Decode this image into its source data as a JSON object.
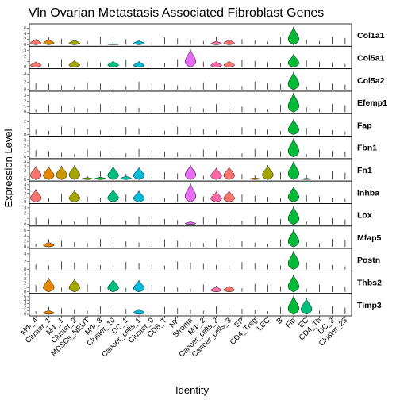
{
  "chart_data": {
    "type": "violin",
    "title": "Vln Ovarian Metastasis Associated Fibroblast Genes",
    "xlabel": "Identity",
    "ylabel": "Expression Level",
    "categories": [
      "MΦ_4",
      "Cluster_1",
      "MΦ_1",
      "Cluster_2",
      "MDSCs_NEUT",
      "MΦ_3",
      "Cluster_10",
      "DC_1",
      "Cancer_cells_1",
      "Cluster_0",
      "CD8_T",
      "NK",
      "Stroma",
      "MΦ_2",
      "Cancer_cells_2",
      "Cancer_cells_3",
      "EP",
      "CD4_Treg",
      "LEC",
      "B",
      "Fib",
      "EC",
      "CD4_Th",
      "DC_2",
      "Cluster_23"
    ],
    "colors": [
      "#F8766D",
      "#E58700",
      "#C99800",
      "#A3A500",
      "#6BB100",
      "#00BA38",
      "#00BF7D",
      "#00C0AF",
      "#00BCD8",
      "#00B0F6",
      "#619CFF",
      "#B983FF",
      "#E76BF3",
      "#FD61D1",
      "#FF67A4"
    ],
    "panels": [
      {
        "gene": "Col1a1",
        "ticks": [
          "6",
          "4",
          "2",
          "0"
        ],
        "ymax": 7,
        "values": [
          2.0,
          1.9,
          0,
          1.7,
          0,
          0,
          0.3,
          0,
          1.5,
          0,
          0,
          0,
          0.2,
          0,
          1.3,
          1.8,
          0,
          0,
          0,
          0,
          6.5,
          0,
          0,
          0,
          0
        ]
      },
      {
        "gene": "Col5a1",
        "ticks": [
          "3",
          "2",
          "1",
          "0"
        ],
        "ymax": 3.5,
        "values": [
          1.0,
          0,
          0,
          1.2,
          0,
          0,
          1.1,
          0,
          1.0,
          0,
          0,
          0,
          3.2,
          0,
          1.0,
          1.1,
          0,
          0,
          0,
          0,
          2.4,
          0,
          0,
          0,
          0
        ]
      },
      {
        "gene": "Col5a2",
        "ticks": [
          "4",
          "2",
          "0"
        ],
        "ymax": 5,
        "values": [
          0,
          0,
          0,
          0,
          0,
          0,
          0,
          0,
          0,
          0,
          0,
          0,
          0,
          0,
          0,
          0,
          0,
          0,
          0,
          0,
          4.6,
          0,
          0,
          0,
          0
        ]
      },
      {
        "gene": "Efemp1",
        "ticks": [
          "3",
          "2",
          "1",
          "0"
        ],
        "ymax": 3.5,
        "values": [
          0,
          0,
          0,
          0,
          0,
          0,
          0,
          0,
          0,
          0,
          0,
          0,
          0,
          0,
          0,
          0,
          0,
          0,
          0,
          0,
          3.5,
          0,
          0,
          0,
          0
        ]
      },
      {
        "gene": "Fap",
        "ticks": [
          "2",
          "1",
          "0"
        ],
        "ymax": 3,
        "values": [
          0,
          0,
          0,
          0,
          0,
          0,
          0,
          0,
          0,
          0,
          0,
          0,
          0,
          0,
          0,
          0,
          0,
          0,
          0,
          0,
          2.4,
          0,
          0,
          0,
          0
        ]
      },
      {
        "gene": "Fbn1",
        "ticks": [
          "3",
          "2",
          "1",
          "0"
        ],
        "ymax": 3.5,
        "values": [
          0,
          0,
          0,
          0,
          0,
          0,
          0,
          0,
          0,
          0,
          0,
          0,
          0,
          0,
          0,
          0,
          0,
          0,
          0,
          0,
          3.4,
          0,
          0,
          0,
          0
        ]
      },
      {
        "gene": "Fn1",
        "ticks": [
          "4",
          "3",
          "2",
          "1",
          "0"
        ],
        "ymax": 4.5,
        "values": [
          3.1,
          3.0,
          3.2,
          3.3,
          0.5,
          0.6,
          3.0,
          0.8,
          2.8,
          0,
          0,
          0,
          3.4,
          0,
          2.7,
          2.9,
          0,
          0.4,
          3.3,
          0,
          4.2,
          0.3,
          0,
          0,
          0
        ]
      },
      {
        "gene": "Inhba",
        "ticks": [
          "4",
          "3",
          "2",
          "1",
          "0"
        ],
        "ymax": 4.5,
        "values": [
          2.9,
          0,
          0,
          2.7,
          0,
          0,
          2.9,
          0,
          2.6,
          0,
          0,
          0,
          4.3,
          0,
          2.4,
          2.6,
          0,
          0,
          0,
          0,
          3.6,
          0,
          0,
          0,
          0
        ]
      },
      {
        "gene": "Lox",
        "ticks": [
          "3",
          "2",
          "1",
          "0"
        ],
        "ymax": 3.5,
        "values": [
          0,
          0,
          0,
          0,
          0,
          0,
          0,
          0,
          0,
          0,
          0,
          0,
          0.5,
          0,
          0,
          0,
          0,
          0,
          0,
          0,
          3.3,
          0,
          0,
          0,
          0
        ]
      },
      {
        "gene": "Mfap5",
        "ticks": [
          "6",
          "4",
          "2",
          "0"
        ],
        "ymax": 7,
        "values": [
          0,
          1.8,
          0,
          0,
          0,
          0,
          0,
          0,
          0,
          0,
          0,
          0,
          0,
          0,
          0,
          0,
          0,
          0,
          0,
          0,
          6.3,
          0,
          0,
          0,
          0
        ]
      },
      {
        "gene": "Postn",
        "ticks": [
          "4",
          "2",
          "0"
        ],
        "ymax": 5,
        "values": [
          0,
          0,
          0,
          0,
          0,
          0,
          0,
          0,
          0,
          0,
          0,
          0,
          0,
          0,
          0,
          0,
          0,
          0,
          0,
          0,
          4.8,
          0,
          0,
          0,
          0
        ]
      },
      {
        "gene": "Thbs2",
        "ticks": [
          "4",
          "3",
          "2",
          "1",
          "0"
        ],
        "ymax": 4.5,
        "values": [
          0,
          3.2,
          0,
          3.0,
          0,
          0,
          2.9,
          0,
          2.7,
          0,
          0,
          0,
          0,
          0,
          1.2,
          1.4,
          0,
          0,
          0,
          0,
          4.0,
          0,
          0,
          0,
          0
        ]
      },
      {
        "gene": "Timp3",
        "ticks": [
          "5",
          "4",
          "3",
          "2",
          "1",
          "0"
        ],
        "ymax": 5.5,
        "values": [
          0,
          1.2,
          0,
          0,
          0,
          0,
          0,
          0,
          1.5,
          0,
          0,
          0,
          0,
          0,
          0,
          0,
          0,
          0,
          0,
          0,
          5.3,
          4.6,
          0,
          0,
          0
        ]
      }
    ]
  }
}
